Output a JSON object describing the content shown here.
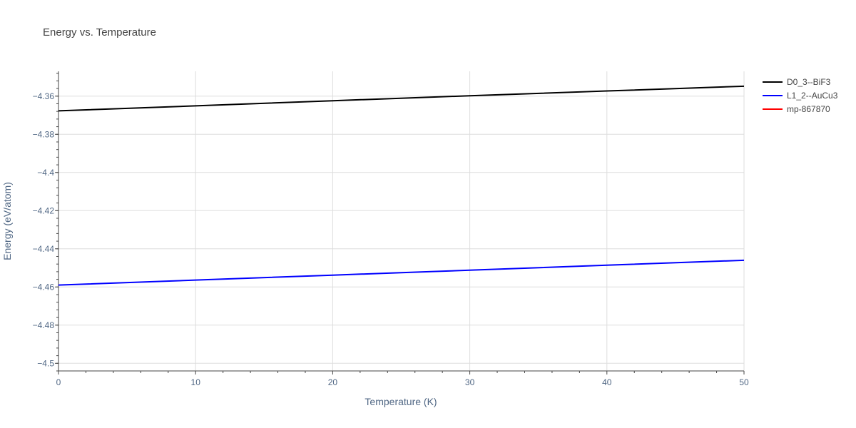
{
  "chart_data": {
    "type": "line",
    "title": "Energy vs. Temperature",
    "xlabel": "Temperature (K)",
    "ylabel": "Energy (eV/atom)",
    "xlim": [
      0,
      50
    ],
    "ylim": [
      -4.504,
      -4.347
    ],
    "x_ticks": [
      0,
      10,
      20,
      30,
      40,
      50
    ],
    "x_tick_labels": [
      "0",
      "10",
      "20",
      "30",
      "40",
      "50"
    ],
    "y_ticks": [
      -4.36,
      -4.38,
      -4.4,
      -4.42,
      -4.44,
      -4.46,
      -4.48,
      -4.5
    ],
    "y_tick_labels": [
      "−4.36",
      "−4.38",
      "−4.4",
      "−4.42",
      "−4.44",
      "−4.46",
      "−4.48",
      "−4.5"
    ],
    "grid": true,
    "legend_position": "top-right",
    "series": [
      {
        "name": "D0_3--BiF3",
        "color": "#000000",
        "x": [
          0,
          10,
          20,
          30,
          40,
          50
        ],
        "y": [
          -4.3677,
          -4.3651,
          -4.3624,
          -4.3598,
          -4.3573,
          -4.3548
        ]
      },
      {
        "name": "L1_2--AuCu3",
        "color": "#0000ff",
        "x": [
          0,
          10,
          20,
          30,
          40,
          50
        ],
        "y": [
          -4.459,
          -4.4564,
          -4.4538,
          -4.4512,
          -4.4486,
          -4.446
        ]
      },
      {
        "name": "mp-867870",
        "color": "#ff0000",
        "x": [],
        "y": []
      }
    ]
  }
}
